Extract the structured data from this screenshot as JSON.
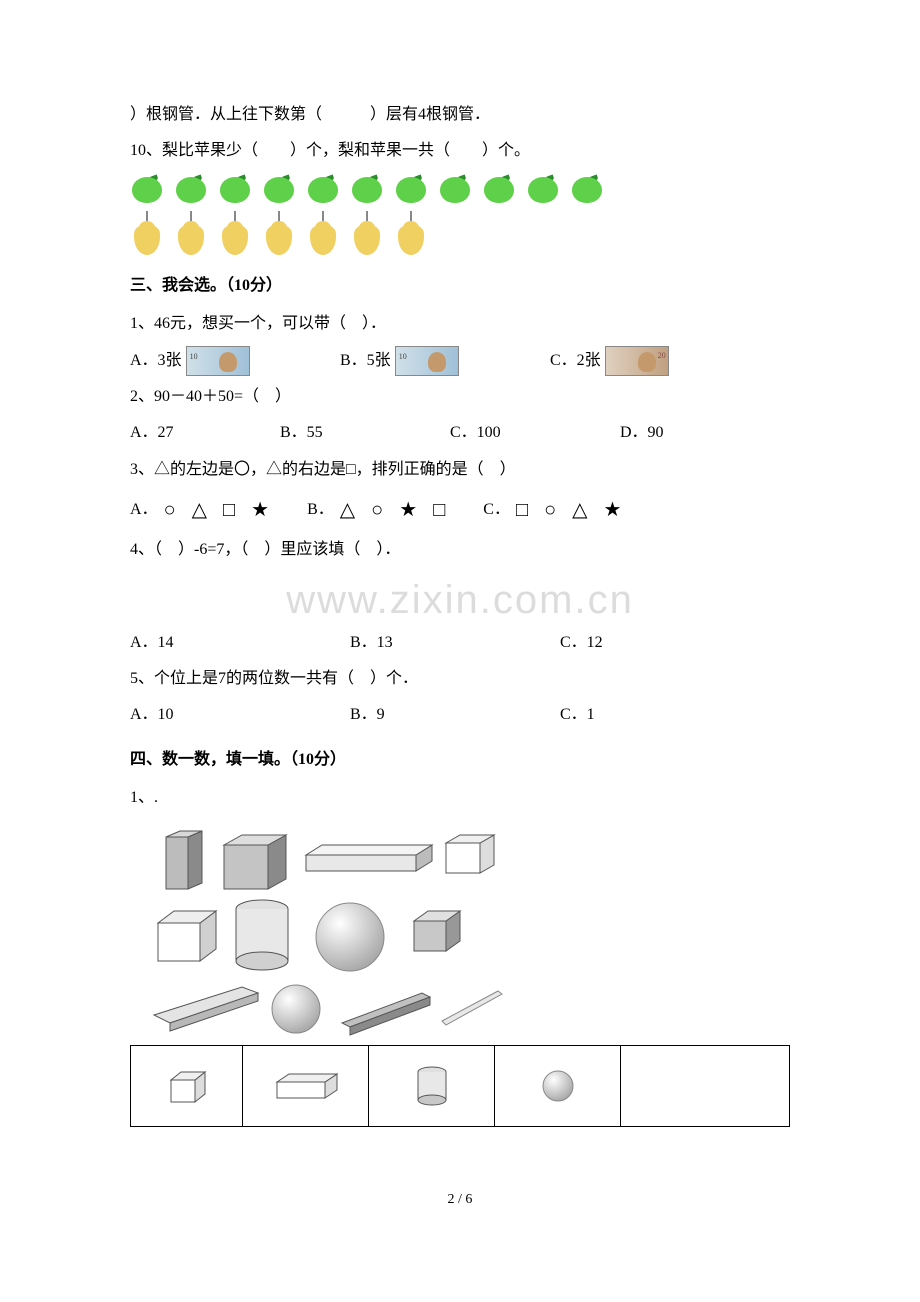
{
  "q9_cont": "）根钢管．从上往下数第（　　　）层有4根钢管．",
  "q10": "10、梨比苹果少（　　）个，梨和苹果一共（　　）个。",
  "apples_count": 11,
  "pears_count": 7,
  "section3": "三、我会选。（10分）",
  "s3q1": "1、46元，想买一个，可以带（　）．",
  "s3q1_a": "A．3张",
  "s3q1_b": "B．5张",
  "s3q1_c": "C．2张",
  "bill_10": "10",
  "bill_20": "20",
  "s3q2": "2、90－40＋50=（　）",
  "s3q2_a": "A．27",
  "s3q2_b": "B．55",
  "s3q2_c": "C．100",
  "s3q2_d": "D．90",
  "s3q3": "3、△的左边是〇，△的右边是□，排列正确的是（　）",
  "s3q3_a": "A．",
  "s3q3_b": "B．",
  "s3q3_c": "C．",
  "s3q4": "4、（　）-6=7，（　）里应该填（　）．",
  "s3q4_a": "A．14",
  "s3q4_b": "B．13",
  "s3q4_c": "C．12",
  "s3q5": "5、个位上是7的两位数一共有（　）个．",
  "s3q5_a": "A．10",
  "s3q5_b": "B．9",
  "s3q5_c": "C．1",
  "section4": "四、数一数，填一填。（10分）",
  "s4q1": "1、.",
  "watermark": "www.zixin.com.cn",
  "page": "2 / 6",
  "shape_sequences": {
    "a": [
      "○",
      "△",
      "□",
      "★"
    ],
    "b": [
      "△",
      "○",
      "★",
      "□"
    ],
    "c": [
      "□",
      "○",
      "△",
      "★"
    ]
  },
  "colors": {
    "apple": "#5fd04a",
    "pear": "#f0d060",
    "watermark": "#dcdcdc",
    "bill_blue_from": "#d0e0e8",
    "bill_blue_to": "#a0c0d8",
    "bill_brown_from": "#e0d0c0",
    "bill_brown_to": "#c0a080",
    "solid_fill": "#d0d0d0",
    "solid_dark": "#909090"
  }
}
